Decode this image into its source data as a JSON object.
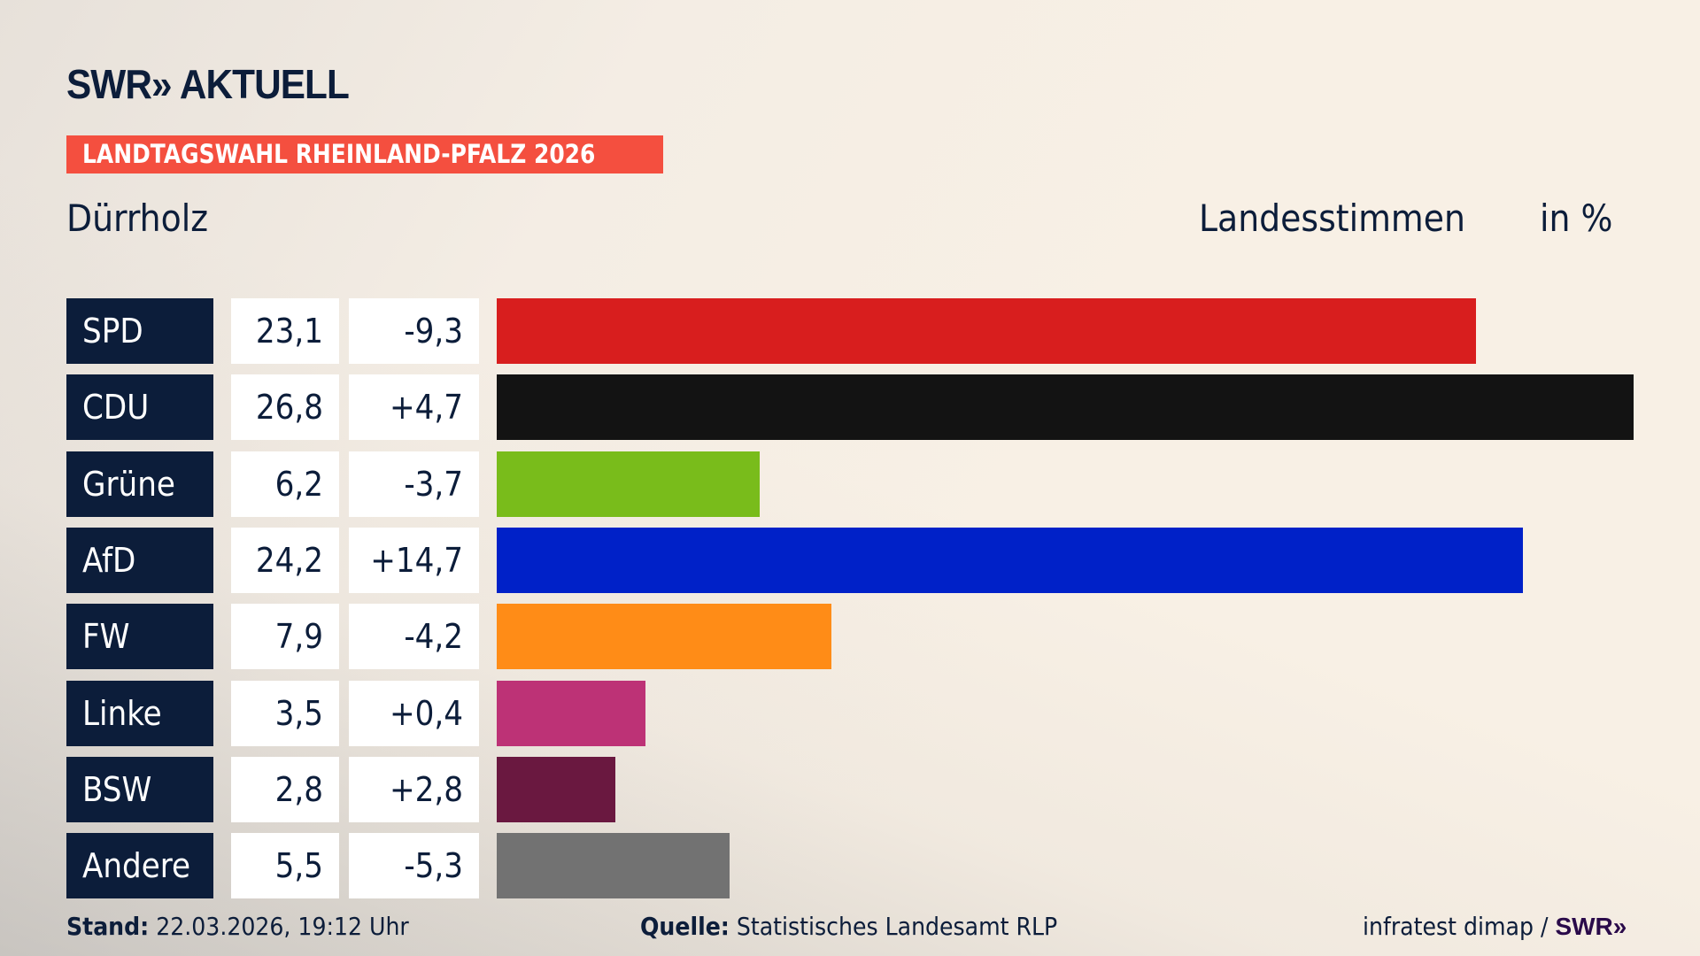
{
  "logo": "SWR» AKTUELL",
  "banner": "LANDTAGSWAHL RHEINLAND-PFALZ 2026",
  "place": "Dürrholz",
  "header": {
    "vote_type": "Landesstimmen",
    "unit": "in %"
  },
  "chart_data": {
    "type": "bar",
    "orientation": "horizontal",
    "categories": [
      "SPD",
      "CDU",
      "Grüne",
      "AfD",
      "FW",
      "Linke",
      "BSW",
      "Andere"
    ],
    "values": [
      "23,1",
      "26,8",
      "6,2",
      "24,2",
      "7,9",
      "3,5",
      "2,8",
      "5,5"
    ],
    "numeric_values": [
      23.1,
      26.8,
      6.2,
      24.2,
      7.9,
      3.5,
      2.8,
      5.5
    ],
    "changes": [
      "-9,3",
      "+4,7",
      "-3,7",
      "+14,7",
      "-4,2",
      "+0,4",
      "+2,8",
      "-5,3"
    ],
    "colors": [
      "#d81e1e",
      "#131313",
      "#79bc1b",
      "#0021c8",
      "#ff8c17",
      "#bd3276",
      "#6a1840",
      "#727272"
    ]
  },
  "footer": {
    "stand_label": "Stand:",
    "stand_value": "22.03.2026, 19:12 Uhr",
    "source_label": "Quelle:",
    "source_value": "Statistisches Landesamt RLP",
    "credit": "infratest dimap /",
    "credit_logo": "SWR»"
  }
}
